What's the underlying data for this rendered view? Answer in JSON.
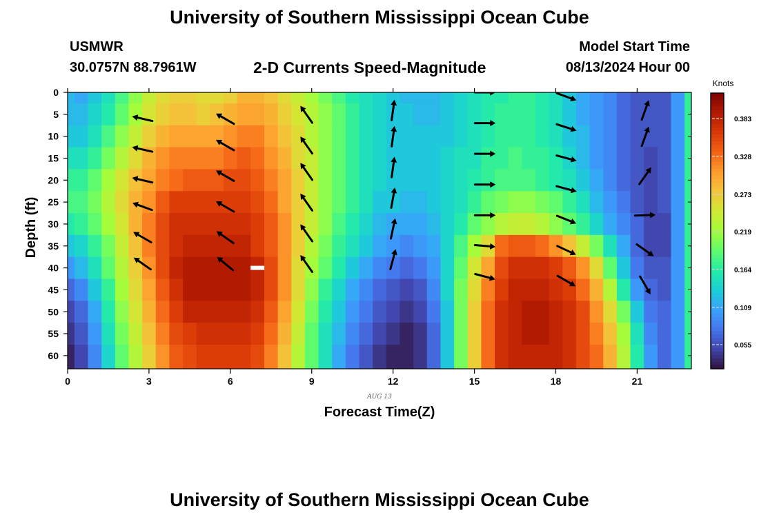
{
  "header": {
    "title": "University of Southern Mississippi Ocean Cube",
    "station": "USMWR",
    "coords": "30.0757N  88.7961W",
    "subtitle": "2-D Currents Speed-Magnitude",
    "model_label": "Model Start Time",
    "model_time": "08/13/2024 Hour 00"
  },
  "footer": {
    "title": "University of Southern Mississippi Ocean Cube"
  },
  "chart_data": {
    "type": "heatmap",
    "xlabel": "Forecast Time(Z)",
    "ylabel": "Depth (ft)",
    "x_sublabel": "AUG 13",
    "xlim": [
      0,
      23
    ],
    "ylim": [
      0,
      63
    ],
    "x_ticks": [
      0,
      3,
      6,
      9,
      12,
      15,
      18,
      21
    ],
    "y_ticks": [
      0,
      5,
      10,
      15,
      20,
      25,
      30,
      35,
      40,
      45,
      50,
      55,
      60
    ],
    "y_reversed": true,
    "colorbar": {
      "label": "Knots",
      "ticks": [
        "0.383",
        "0.328",
        "0.273",
        "0.219",
        "0.164",
        "0.109",
        "0.055"
      ],
      "tick_values": [
        0.383,
        0.328,
        0.273,
        0.219,
        0.164,
        0.109,
        0.055
      ],
      "range": [
        0.02,
        0.42
      ],
      "colormap": [
        "#30123b",
        "#4145ab",
        "#4675ed",
        "#39a2fc",
        "#1bcfd4",
        "#24eca6",
        "#61fc6c",
        "#a4fc3b",
        "#d1e834",
        "#f3c63a",
        "#fe9b2d",
        "#f36315",
        "#d93806",
        "#b11901",
        "#7a0402"
      ]
    },
    "speed_matrix": {
      "hours": [
        0.0,
        0.5,
        1.0,
        1.5,
        2.0,
        2.5,
        3.0,
        3.5,
        4.0,
        4.5,
        5.0,
        5.5,
        6.0,
        6.5,
        7.0,
        7.5,
        8.0,
        8.5,
        9.0,
        9.5,
        10.0,
        10.5,
        11.0,
        11.5,
        12.0,
        12.5,
        13.0,
        13.5,
        14.0,
        14.5,
        15.0,
        15.5,
        16.0,
        16.5,
        17.0,
        17.5,
        18.0,
        18.5,
        19.0,
        19.5,
        20.0,
        20.5,
        21.0,
        21.5,
        22.0,
        22.5,
        23.0
      ],
      "depths": [
        0,
        5,
        10,
        15,
        20,
        25,
        30,
        35,
        40,
        45,
        50,
        55,
        60,
        65
      ],
      "values": [
        [
          0.12,
          0.11,
          0.13,
          0.15,
          0.18,
          0.21,
          0.24,
          0.26,
          0.27,
          0.27,
          0.26,
          0.26,
          0.27,
          0.29,
          0.29,
          0.28,
          0.26,
          0.24,
          0.22,
          0.2,
          0.18,
          0.16,
          0.15,
          0.14,
          0.13,
          0.12,
          0.12,
          0.12,
          0.13,
          0.14,
          0.15,
          0.16,
          0.16,
          0.17,
          0.17,
          0.16,
          0.15,
          0.13,
          0.11,
          0.1,
          0.09,
          0.07,
          0.06,
          0.06,
          0.06,
          0.1,
          0.17
        ],
        [
          0.12,
          0.12,
          0.14,
          0.16,
          0.19,
          0.22,
          0.25,
          0.27,
          0.28,
          0.28,
          0.27,
          0.28,
          0.29,
          0.3,
          0.3,
          0.29,
          0.27,
          0.25,
          0.23,
          0.21,
          0.19,
          0.17,
          0.15,
          0.14,
          0.13,
          0.13,
          0.12,
          0.12,
          0.13,
          0.14,
          0.15,
          0.16,
          0.17,
          0.17,
          0.17,
          0.16,
          0.15,
          0.13,
          0.11,
          0.1,
          0.09,
          0.07,
          0.06,
          0.06,
          0.06,
          0.1,
          0.17
        ],
        [
          0.13,
          0.13,
          0.15,
          0.18,
          0.21,
          0.24,
          0.27,
          0.29,
          0.3,
          0.3,
          0.3,
          0.3,
          0.31,
          0.32,
          0.32,
          0.3,
          0.28,
          0.26,
          0.23,
          0.21,
          0.19,
          0.17,
          0.15,
          0.14,
          0.13,
          0.13,
          0.13,
          0.13,
          0.13,
          0.14,
          0.15,
          0.16,
          0.17,
          0.17,
          0.17,
          0.16,
          0.15,
          0.13,
          0.12,
          0.1,
          0.09,
          0.07,
          0.06,
          0.06,
          0.06,
          0.1,
          0.17
        ],
        [
          0.15,
          0.15,
          0.17,
          0.2,
          0.23,
          0.26,
          0.29,
          0.31,
          0.32,
          0.32,
          0.32,
          0.32,
          0.33,
          0.34,
          0.33,
          0.31,
          0.29,
          0.26,
          0.24,
          0.21,
          0.19,
          0.17,
          0.15,
          0.14,
          0.13,
          0.13,
          0.13,
          0.13,
          0.14,
          0.15,
          0.15,
          0.17,
          0.17,
          0.18,
          0.17,
          0.17,
          0.16,
          0.14,
          0.12,
          0.1,
          0.09,
          0.07,
          0.06,
          0.05,
          0.06,
          0.1,
          0.17
        ],
        [
          0.17,
          0.17,
          0.19,
          0.22,
          0.25,
          0.28,
          0.3,
          0.32,
          0.33,
          0.34,
          0.34,
          0.34,
          0.35,
          0.35,
          0.34,
          0.32,
          0.3,
          0.27,
          0.24,
          0.21,
          0.19,
          0.17,
          0.15,
          0.14,
          0.13,
          0.13,
          0.13,
          0.13,
          0.14,
          0.15,
          0.16,
          0.17,
          0.18,
          0.18,
          0.18,
          0.17,
          0.16,
          0.15,
          0.13,
          0.11,
          0.09,
          0.07,
          0.06,
          0.05,
          0.06,
          0.1,
          0.17
        ],
        [
          0.18,
          0.18,
          0.2,
          0.23,
          0.26,
          0.29,
          0.31,
          0.34,
          0.36,
          0.36,
          0.36,
          0.36,
          0.36,
          0.36,
          0.35,
          0.33,
          0.3,
          0.27,
          0.24,
          0.21,
          0.19,
          0.17,
          0.15,
          0.13,
          0.13,
          0.12,
          0.12,
          0.13,
          0.14,
          0.15,
          0.17,
          0.19,
          0.2,
          0.21,
          0.21,
          0.2,
          0.19,
          0.17,
          0.15,
          0.12,
          0.1,
          0.08,
          0.06,
          0.05,
          0.06,
          0.1,
          0.17
        ],
        [
          0.16,
          0.17,
          0.19,
          0.22,
          0.25,
          0.29,
          0.32,
          0.35,
          0.37,
          0.37,
          0.37,
          0.37,
          0.37,
          0.37,
          0.36,
          0.34,
          0.31,
          0.27,
          0.24,
          0.21,
          0.18,
          0.16,
          0.14,
          0.12,
          0.11,
          0.11,
          0.11,
          0.12,
          0.14,
          0.16,
          0.19,
          0.21,
          0.23,
          0.24,
          0.24,
          0.23,
          0.21,
          0.19,
          0.17,
          0.14,
          0.11,
          0.09,
          0.07,
          0.05,
          0.05,
          0.1,
          0.17
        ],
        [
          0.13,
          0.14,
          0.17,
          0.2,
          0.24,
          0.28,
          0.32,
          0.35,
          0.37,
          0.38,
          0.38,
          0.38,
          0.38,
          0.38,
          0.36,
          0.34,
          0.31,
          0.27,
          0.23,
          0.2,
          0.17,
          0.15,
          0.13,
          0.11,
          0.1,
          0.09,
          0.1,
          0.11,
          0.14,
          0.18,
          0.22,
          0.26,
          0.33,
          0.34,
          0.34,
          0.33,
          0.31,
          0.28,
          0.24,
          0.2,
          0.15,
          0.11,
          0.07,
          0.05,
          0.05,
          0.1,
          0.17
        ],
        [
          0.1,
          0.12,
          0.15,
          0.19,
          0.23,
          0.27,
          0.31,
          0.35,
          0.38,
          0.39,
          0.39,
          0.39,
          0.39,
          0.39,
          0.38,
          0.35,
          0.31,
          0.26,
          0.22,
          0.19,
          0.16,
          0.13,
          0.11,
          0.09,
          0.08,
          0.07,
          0.08,
          0.1,
          0.14,
          0.19,
          0.25,
          0.3,
          0.35,
          0.37,
          0.37,
          0.37,
          0.36,
          0.34,
          0.31,
          0.26,
          0.19,
          0.13,
          0.08,
          0.06,
          0.06,
          0.1,
          0.17
        ],
        [
          0.07,
          0.09,
          0.13,
          0.17,
          0.22,
          0.26,
          0.3,
          0.34,
          0.37,
          0.39,
          0.39,
          0.39,
          0.39,
          0.39,
          0.38,
          0.35,
          0.31,
          0.26,
          0.21,
          0.17,
          0.14,
          0.11,
          0.09,
          0.07,
          0.06,
          0.05,
          0.06,
          0.09,
          0.14,
          0.2,
          0.26,
          0.32,
          0.36,
          0.38,
          0.38,
          0.38,
          0.37,
          0.36,
          0.33,
          0.29,
          0.23,
          0.16,
          0.1,
          0.07,
          0.06,
          0.1,
          0.17
        ],
        [
          0.05,
          0.07,
          0.11,
          0.16,
          0.21,
          0.25,
          0.29,
          0.33,
          0.36,
          0.38,
          0.38,
          0.38,
          0.38,
          0.38,
          0.37,
          0.34,
          0.3,
          0.25,
          0.2,
          0.16,
          0.13,
          0.1,
          0.08,
          0.06,
          0.05,
          0.04,
          0.05,
          0.08,
          0.13,
          0.2,
          0.27,
          0.33,
          0.37,
          0.38,
          0.39,
          0.39,
          0.38,
          0.37,
          0.35,
          0.31,
          0.26,
          0.2,
          0.13,
          0.08,
          0.07,
          0.1,
          0.17
        ],
        [
          0.04,
          0.06,
          0.1,
          0.15,
          0.2,
          0.24,
          0.28,
          0.32,
          0.35,
          0.36,
          0.37,
          0.37,
          0.37,
          0.37,
          0.36,
          0.33,
          0.29,
          0.24,
          0.19,
          0.15,
          0.12,
          0.09,
          0.07,
          0.05,
          0.04,
          0.03,
          0.04,
          0.07,
          0.13,
          0.2,
          0.27,
          0.33,
          0.37,
          0.38,
          0.39,
          0.39,
          0.38,
          0.37,
          0.35,
          0.32,
          0.28,
          0.22,
          0.15,
          0.09,
          0.07,
          0.1,
          0.17
        ],
        [
          0.03,
          0.05,
          0.09,
          0.14,
          0.19,
          0.23,
          0.27,
          0.31,
          0.34,
          0.35,
          0.36,
          0.36,
          0.36,
          0.36,
          0.35,
          0.32,
          0.28,
          0.23,
          0.19,
          0.15,
          0.11,
          0.08,
          0.06,
          0.04,
          0.03,
          0.03,
          0.04,
          0.07,
          0.13,
          0.2,
          0.27,
          0.33,
          0.37,
          0.38,
          0.38,
          0.38,
          0.38,
          0.37,
          0.35,
          0.33,
          0.29,
          0.23,
          0.16,
          0.1,
          0.07,
          0.1,
          0.17
        ],
        [
          0.03,
          0.05,
          0.09,
          0.14,
          0.19,
          0.23,
          0.27,
          0.31,
          0.34,
          0.35,
          0.36,
          0.36,
          0.36,
          0.36,
          0.35,
          0.32,
          0.28,
          0.23,
          0.19,
          0.15,
          0.11,
          0.08,
          0.06,
          0.04,
          0.03,
          0.03,
          0.04,
          0.07,
          0.13,
          0.2,
          0.27,
          0.33,
          0.37,
          0.38,
          0.38,
          0.38,
          0.38,
          0.37,
          0.35,
          0.33,
          0.29,
          0.23,
          0.16,
          0.1,
          0.07,
          0.1,
          0.17
        ]
      ]
    },
    "vectors": [
      {
        "hour": 2.75,
        "depth": 6,
        "dir_deg": 283,
        "speed": 0.27
      },
      {
        "hour": 2.75,
        "depth": 13,
        "dir_deg": 283,
        "speed": 0.28
      },
      {
        "hour": 2.75,
        "depth": 20,
        "dir_deg": 283,
        "speed": 0.3
      },
      {
        "hour": 2.75,
        "depth": 26,
        "dir_deg": 290,
        "speed": 0.31
      },
      {
        "hour": 2.75,
        "depth": 33,
        "dir_deg": 300,
        "speed": 0.3
      },
      {
        "hour": 2.75,
        "depth": 39,
        "dir_deg": 305,
        "speed": 0.29
      },
      {
        "hour": 5.8,
        "depth": 6,
        "dir_deg": 300,
        "speed": 0.33
      },
      {
        "hour": 5.8,
        "depth": 12,
        "dir_deg": 300,
        "speed": 0.34
      },
      {
        "hour": 5.8,
        "depth": 19,
        "dir_deg": 300,
        "speed": 0.35
      },
      {
        "hour": 5.8,
        "depth": 26,
        "dir_deg": 300,
        "speed": 0.36
      },
      {
        "hour": 5.8,
        "depth": 33,
        "dir_deg": 305,
        "speed": 0.36
      },
      {
        "hour": 5.8,
        "depth": 39,
        "dir_deg": 310,
        "speed": 0.37
      },
      {
        "hour": 8.8,
        "depth": 5,
        "dir_deg": 325,
        "speed": 0.27
      },
      {
        "hour": 8.8,
        "depth": 12,
        "dir_deg": 325,
        "speed": 0.27
      },
      {
        "hour": 8.8,
        "depth": 18,
        "dir_deg": 325,
        "speed": 0.27
      },
      {
        "hour": 8.8,
        "depth": 25,
        "dir_deg": 325,
        "speed": 0.28
      },
      {
        "hour": 8.8,
        "depth": 32,
        "dir_deg": 325,
        "speed": 0.28
      },
      {
        "hour": 8.8,
        "depth": 39,
        "dir_deg": 325,
        "speed": 0.29
      },
      {
        "hour": 12.0,
        "depth": 4,
        "dir_deg": 8,
        "speed": 0.12
      },
      {
        "hour": 12.0,
        "depth": 10,
        "dir_deg": 8,
        "speed": 0.12
      },
      {
        "hour": 12.0,
        "depth": 17,
        "dir_deg": 8,
        "speed": 0.13
      },
      {
        "hour": 12.0,
        "depth": 24,
        "dir_deg": 10,
        "speed": 0.12
      },
      {
        "hour": 12.0,
        "depth": 31,
        "dir_deg": 12,
        "speed": 0.11
      },
      {
        "hour": 12.0,
        "depth": 38,
        "dir_deg": 15,
        "speed": 0.08
      },
      {
        "hour": 15.4,
        "depth": 0,
        "dir_deg": 90,
        "speed": 0.16
      },
      {
        "hour": 15.4,
        "depth": 7,
        "dir_deg": 90,
        "speed": 0.16
      },
      {
        "hour": 15.4,
        "depth": 14,
        "dir_deg": 90,
        "speed": 0.17
      },
      {
        "hour": 15.4,
        "depth": 21,
        "dir_deg": 90,
        "speed": 0.17
      },
      {
        "hour": 15.4,
        "depth": 28,
        "dir_deg": 90,
        "speed": 0.2
      },
      {
        "hour": 15.4,
        "depth": 35,
        "dir_deg": 95,
        "speed": 0.26
      },
      {
        "hour": 15.4,
        "depth": 42,
        "dir_deg": 105,
        "speed": 0.3
      },
      {
        "hour": 18.4,
        "depth": 1,
        "dir_deg": 110,
        "speed": 0.15
      },
      {
        "hour": 18.4,
        "depth": 8,
        "dir_deg": 108,
        "speed": 0.15
      },
      {
        "hour": 18.4,
        "depth": 15,
        "dir_deg": 105,
        "speed": 0.16
      },
      {
        "hour": 18.4,
        "depth": 22,
        "dir_deg": 105,
        "speed": 0.17
      },
      {
        "hour": 18.4,
        "depth": 29,
        "dir_deg": 112,
        "speed": 0.19
      },
      {
        "hour": 18.4,
        "depth": 36,
        "dir_deg": 115,
        "speed": 0.35
      },
      {
        "hour": 18.4,
        "depth": 43,
        "dir_deg": 120,
        "speed": 0.37
      },
      {
        "hour": 21.3,
        "depth": 4,
        "dir_deg": 20,
        "speed": 0.06
      },
      {
        "hour": 21.3,
        "depth": 10,
        "dir_deg": 20,
        "speed": 0.06
      },
      {
        "hour": 21.3,
        "depth": 19,
        "dir_deg": 35,
        "speed": 0.06
      },
      {
        "hour": 21.3,
        "depth": 28,
        "dir_deg": 88,
        "speed": 0.05
      },
      {
        "hour": 21.3,
        "depth": 36,
        "dir_deg": 125,
        "speed": 0.06
      },
      {
        "hour": 21.3,
        "depth": 44,
        "dir_deg": 150,
        "speed": 0.06
      }
    ],
    "marker": {
      "hour": 7.0,
      "depth": 40
    }
  }
}
